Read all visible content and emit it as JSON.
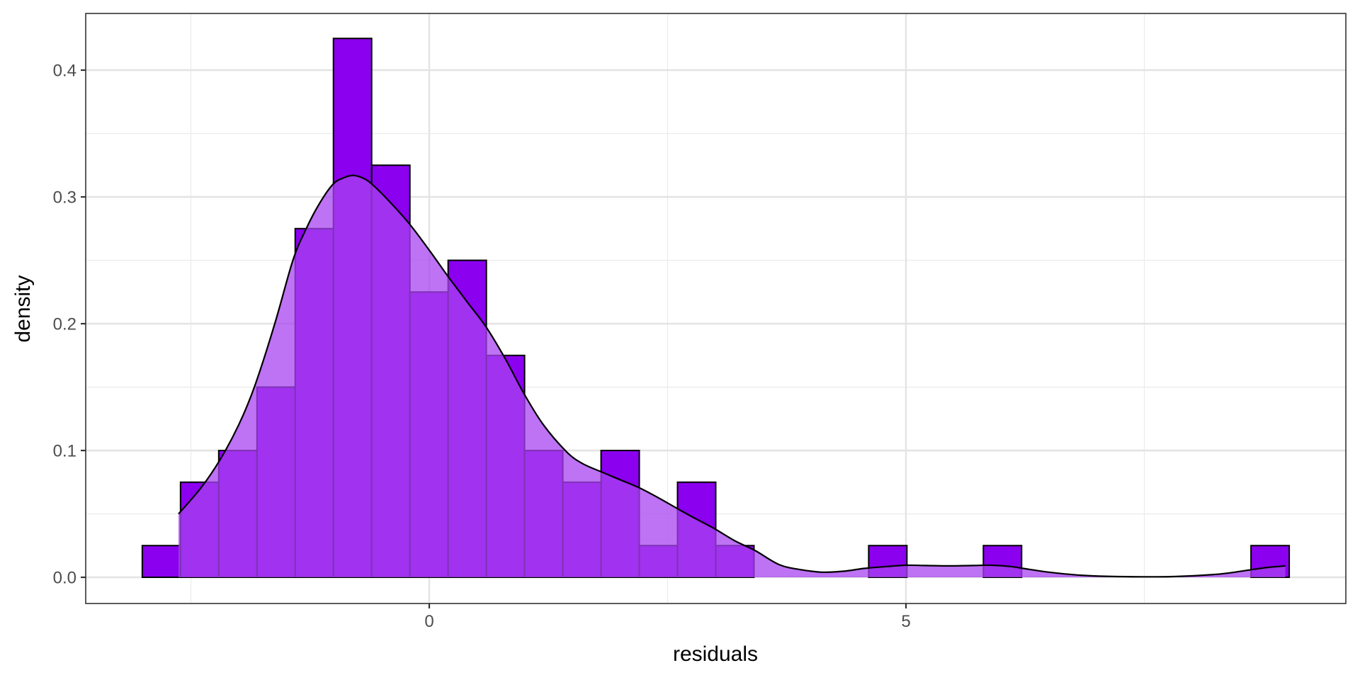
{
  "chart_data": {
    "type": "histogram",
    "title": "",
    "xlabel": "residuals",
    "ylabel": "density",
    "xlim": [
      -3.5,
      9.45
    ],
    "ylim": [
      -0.02,
      0.445
    ],
    "x_ticks": [
      0,
      5
    ],
    "x_tick_labels": [
      "0",
      "5"
    ],
    "x_minor_gridlines": [
      -2.5,
      2.5,
      7.5
    ],
    "y_ticks": [
      0.0,
      0.1,
      0.2,
      0.3,
      0.4
    ],
    "y_tick_labels": [
      "0.0",
      "0.1",
      "0.2",
      "0.3",
      "0.4"
    ],
    "y_minor_gridlines": [
      0.05,
      0.15,
      0.25,
      0.35
    ],
    "grid": true,
    "legend": "none",
    "histogram": {
      "bin_start": -3.01,
      "bin_width": 0.401,
      "bin_count": 30,
      "densities": [
        0.025,
        0.075,
        0.1,
        0.15,
        0.275,
        0.425,
        0.325,
        0.225,
        0.25,
        0.175,
        0.1,
        0.075,
        0.1,
        0.025,
        0.075,
        0.025,
        0,
        0,
        0,
        0.025,
        0,
        0,
        0.025,
        0,
        0,
        0,
        0,
        0,
        0,
        0.025
      ],
      "fill": "#8b00ee",
      "outline": "#000000"
    },
    "density_curve": {
      "x": [
        -2.63,
        -2.4,
        -2.2,
        -2.0,
        -1.83,
        -1.62,
        -1.43,
        -1.29,
        -1.15,
        -1.01,
        -0.9,
        -0.8,
        -0.7,
        -0.6,
        -0.4,
        -0.2,
        0.0,
        0.2,
        0.4,
        0.6,
        0.8,
        1.0,
        1.2,
        1.44,
        1.6,
        1.81,
        2.0,
        2.22,
        2.42,
        2.63,
        2.8,
        3.0,
        3.2,
        3.42,
        3.67,
        3.9,
        4.12,
        4.35,
        4.56,
        4.8,
        5.0,
        5.2,
        5.45,
        5.7,
        5.9,
        6.1,
        6.23,
        6.5,
        6.8,
        7.1,
        7.5,
        7.83,
        8.2,
        8.4,
        8.62,
        8.8,
        8.98
      ],
      "y": [
        0.05,
        0.07,
        0.092,
        0.12,
        0.151,
        0.2,
        0.25,
        0.275,
        0.295,
        0.31,
        0.315,
        0.317,
        0.315,
        0.31,
        0.295,
        0.278,
        0.258,
        0.237,
        0.217,
        0.197,
        0.172,
        0.144,
        0.12,
        0.099,
        0.09,
        0.083,
        0.077,
        0.07,
        0.062,
        0.053,
        0.046,
        0.038,
        0.029,
        0.021,
        0.01,
        0.006,
        0.004,
        0.0048,
        0.007,
        0.0085,
        0.0095,
        0.0093,
        0.009,
        0.0093,
        0.0095,
        0.0085,
        0.007,
        0.004,
        0.0018,
        0.0008,
        0.0004,
        0.0006,
        0.002,
        0.0035,
        0.006,
        0.0078,
        0.009
      ],
      "fill": "#a843f0",
      "fill_opacity": 0.75,
      "line": "#000000"
    }
  }
}
